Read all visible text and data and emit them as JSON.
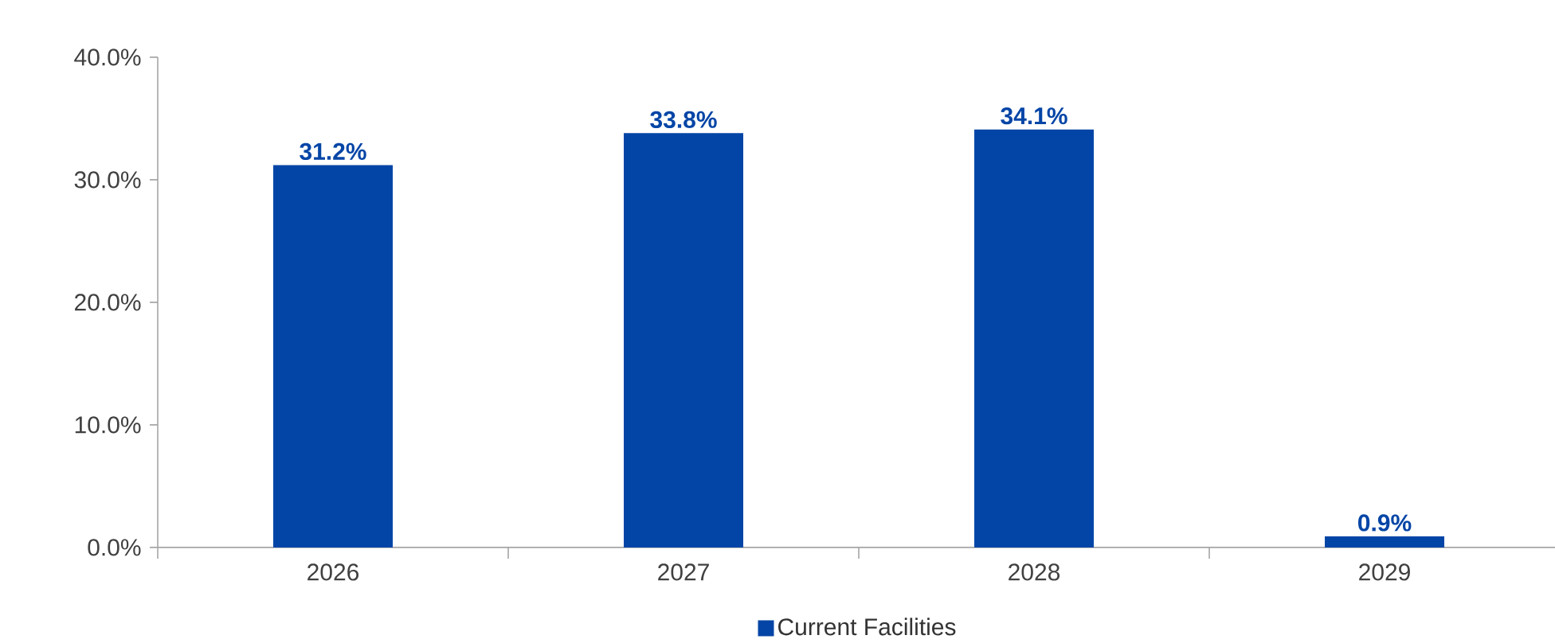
{
  "chart_data": {
    "type": "bar",
    "categories": [
      "2026",
      "2027",
      "2028",
      "2029"
    ],
    "series": [
      {
        "name": "Current Facilities",
        "color": "#0345a6",
        "values": [
          31.2,
          33.8,
          34.1,
          0.9
        ],
        "value_labels": [
          "31.2%",
          "33.8%",
          "34.1%",
          "0.9%"
        ]
      }
    ],
    "ylim": [
      0,
      40
    ],
    "yticks": [
      {
        "value": 0,
        "label": "0.0%"
      },
      {
        "value": 10,
        "label": "10.0%"
      },
      {
        "value": 20,
        "label": "20.0%"
      },
      {
        "value": 30,
        "label": "30.0%"
      },
      {
        "value": 40,
        "label": "40.0%"
      }
    ],
    "grid": false,
    "legend": "bottom"
  }
}
